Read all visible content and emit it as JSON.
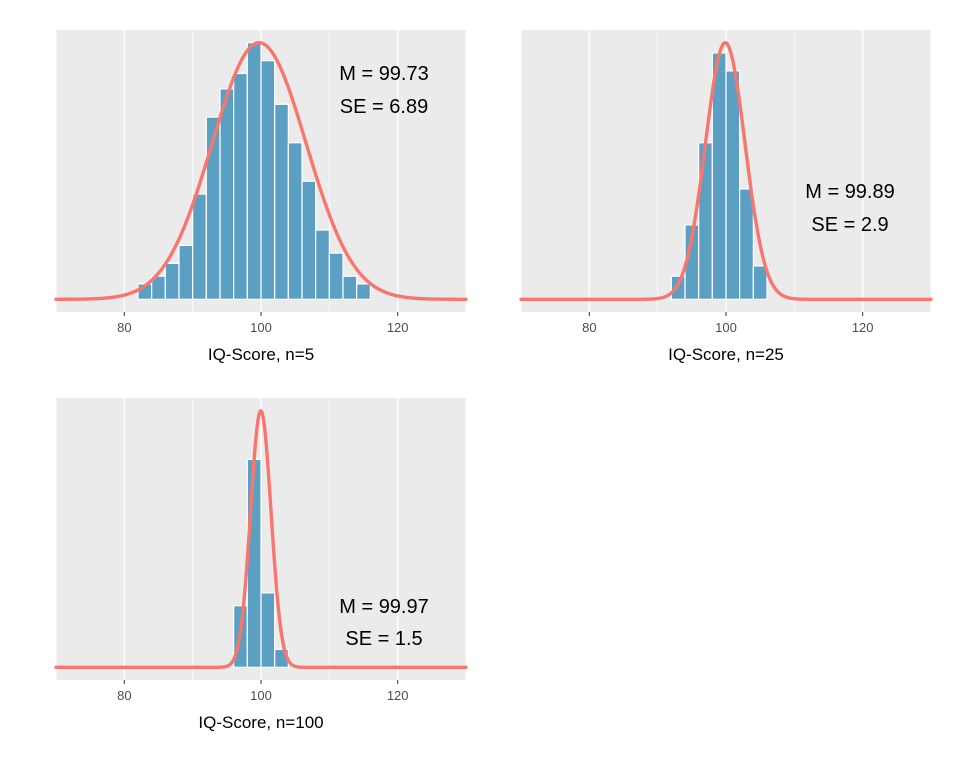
{
  "colors": {
    "bar_fill": "#5B9FC2",
    "curve": "#F8766D",
    "panel_bg": "#EBEBEB",
    "grid": "#FFFFFF"
  },
  "chart_data": [
    {
      "type": "bar",
      "xlabel": "IQ-Score, n=5",
      "xlim": [
        70,
        130
      ],
      "xticks": [
        80,
        100,
        120
      ],
      "ylabel": "",
      "grid": true,
      "annotation": {
        "mean": "M = 99.73",
        "se": "SE = 6.89"
      },
      "density": {
        "mean": 99.73,
        "sd": 6.89
      },
      "bins": [
        {
          "x": 83,
          "value": 0.06
        },
        {
          "x": 85,
          "value": 0.09
        },
        {
          "x": 87,
          "value": 0.14
        },
        {
          "x": 89,
          "value": 0.21
        },
        {
          "x": 91,
          "value": 0.41
        },
        {
          "x": 93,
          "value": 0.71
        },
        {
          "x": 95,
          "value": 0.82
        },
        {
          "x": 97,
          "value": 0.88
        },
        {
          "x": 99,
          "value": 1.0
        },
        {
          "x": 101,
          "value": 0.93
        },
        {
          "x": 103,
          "value": 0.76
        },
        {
          "x": 105,
          "value": 0.61
        },
        {
          "x": 107,
          "value": 0.46
        },
        {
          "x": 109,
          "value": 0.27
        },
        {
          "x": 111,
          "value": 0.18
        },
        {
          "x": 113,
          "value": 0.09
        },
        {
          "x": 115,
          "value": 0.06
        }
      ]
    },
    {
      "type": "bar",
      "xlabel": "IQ-Score, n=25",
      "xlim": [
        70,
        130
      ],
      "xticks": [
        80,
        100,
        120
      ],
      "ylabel": "",
      "grid": true,
      "annotation": {
        "mean": "M = 99.89",
        "se": "SE = 2.9"
      },
      "density": {
        "mean": 99.89,
        "sd": 2.9
      },
      "bins": [
        {
          "x": 93,
          "value": 0.09
        },
        {
          "x": 95,
          "value": 0.29
        },
        {
          "x": 97,
          "value": 0.61
        },
        {
          "x": 99,
          "value": 0.96
        },
        {
          "x": 101,
          "value": 0.89
        },
        {
          "x": 103,
          "value": 0.43
        },
        {
          "x": 105,
          "value": 0.13
        }
      ]
    },
    {
      "type": "bar",
      "xlabel": "IQ-Score, n=100",
      "xlim": [
        70,
        130
      ],
      "xticks": [
        80,
        100,
        120
      ],
      "ylabel": "",
      "grid": true,
      "annotation": {
        "mean": "M = 99.97",
        "se": "SE = 1.5"
      },
      "density": {
        "mean": 99.97,
        "sd": 1.5
      },
      "bins": [
        {
          "x": 97,
          "value": 0.24
        },
        {
          "x": 99,
          "value": 0.81
        },
        {
          "x": 101,
          "value": 0.29
        },
        {
          "x": 103,
          "value": 0.07
        }
      ]
    }
  ]
}
